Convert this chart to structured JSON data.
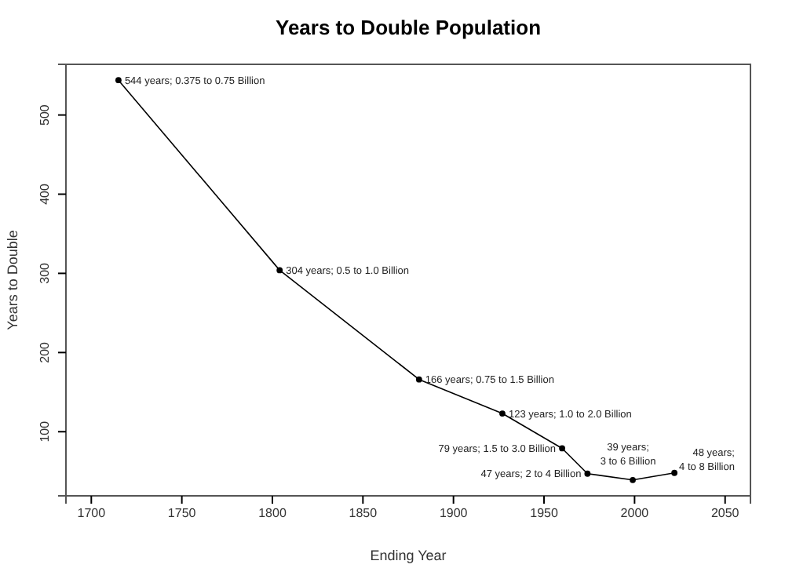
{
  "chart_data": {
    "type": "line",
    "title": "Years to Double Population",
    "xlabel": "Ending Year",
    "ylabel": "Years to Double",
    "x": [
      1715,
      1804,
      1881,
      1927,
      1960,
      1974,
      1999,
      2022
    ],
    "series": [
      {
        "color": "#000000",
        "values": [
          544,
          304,
          166,
          123,
          79,
          47,
          39,
          48
        ],
        "value_labels": [
          "544 years; 0.375 to 0.75 Billion",
          "304 years; 0.5 to 1.0 Billion",
          "166 years; 0.75 to 1.5 Billion",
          "123 years; 1.0 to 2.0 Billion",
          "79 years; 1.5 to 3.0 Billion",
          "47 years; 2 to 4 Billion",
          "39 years; 3 to 6 Billion",
          "48 years; 4 to 8 Billion"
        ]
      }
    ],
    "xlim": [
      1686,
      2064
    ],
    "ylim": [
      19,
      564
    ],
    "xticks": [
      1700,
      1750,
      1800,
      1850,
      1900,
      1950,
      2000,
      2050
    ],
    "yticks": [
      100,
      200,
      300,
      400,
      500
    ],
    "marker": "circle",
    "line_style": "solid",
    "grid": false
  }
}
